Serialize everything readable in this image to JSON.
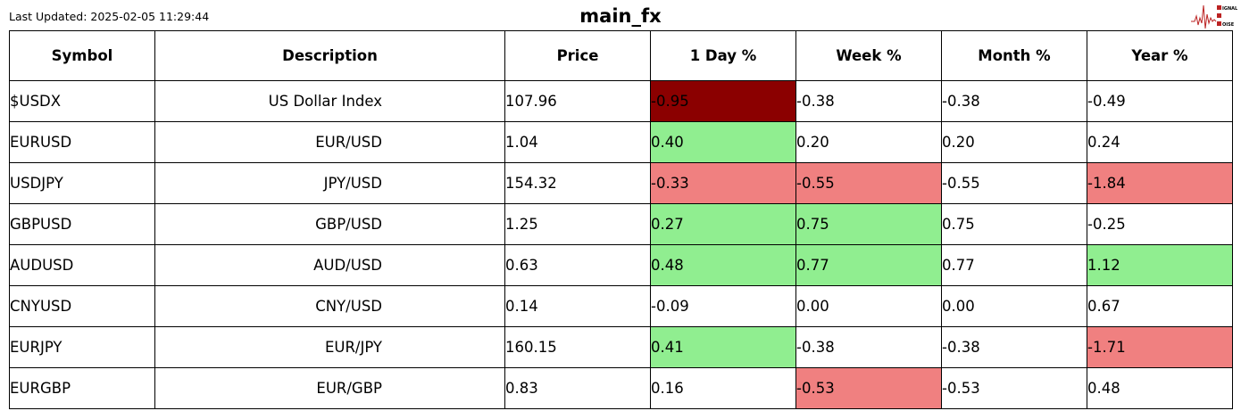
{
  "header": {
    "last_updated": "Last Updated: 2025-02-05 11:29:44",
    "title": "main_fx",
    "logo_text": "SIGNAL 2 NOISE"
  },
  "colors": {
    "strong_negative": "#8b0000",
    "positive": "#90ee90",
    "negative": "#f08080",
    "neutral": "#ffffff"
  },
  "columns": [
    "Symbol",
    "Description",
    "Price",
    "1 Day %",
    "Week %",
    "Month %",
    "Year %"
  ],
  "rows": [
    {
      "cells": [
        "$USDX",
        "US Dollar Index",
        "107.96",
        "-0.95",
        "-0.38",
        "-0.38",
        "-0.49"
      ],
      "highlight": [
        "",
        "",
        "",
        "strong_negative",
        "",
        "",
        ""
      ]
    },
    {
      "cells": [
        "EURUSD",
        "EUR/USD",
        "1.04",
        "0.40",
        "0.20",
        "0.20",
        "0.24"
      ],
      "highlight": [
        "",
        "",
        "",
        "positive",
        "",
        "",
        ""
      ]
    },
    {
      "cells": [
        "USDJPY",
        "JPY/USD",
        "154.32",
        "-0.33",
        "-0.55",
        "-0.55",
        "-1.84"
      ],
      "highlight": [
        "",
        "",
        "",
        "negative",
        "negative",
        "",
        "negative"
      ]
    },
    {
      "cells": [
        "GBPUSD",
        "GBP/USD",
        "1.25",
        "0.27",
        "0.75",
        "0.75",
        "-0.25"
      ],
      "highlight": [
        "",
        "",
        "",
        "positive",
        "positive",
        "",
        ""
      ]
    },
    {
      "cells": [
        "AUDUSD",
        "AUD/USD",
        "0.63",
        "0.48",
        "0.77",
        "0.77",
        "1.12"
      ],
      "highlight": [
        "",
        "",
        "",
        "positive",
        "positive",
        "",
        "positive"
      ]
    },
    {
      "cells": [
        "CNYUSD",
        "CNY/USD",
        "0.14",
        "-0.09",
        "0.00",
        "0.00",
        "0.67"
      ],
      "highlight": [
        "",
        "",
        "",
        "",
        "",
        "",
        ""
      ]
    },
    {
      "cells": [
        "EURJPY",
        "EUR/JPY",
        "160.15",
        "0.41",
        "-0.38",
        "-0.38",
        "-1.71"
      ],
      "highlight": [
        "",
        "",
        "",
        "positive",
        "",
        "",
        "negative"
      ]
    },
    {
      "cells": [
        "EURGBP",
        "EUR/GBP",
        "0.83",
        "0.16",
        "-0.53",
        "-0.53",
        "0.48"
      ],
      "highlight": [
        "",
        "",
        "",
        "",
        "negative",
        "",
        ""
      ]
    }
  ]
}
